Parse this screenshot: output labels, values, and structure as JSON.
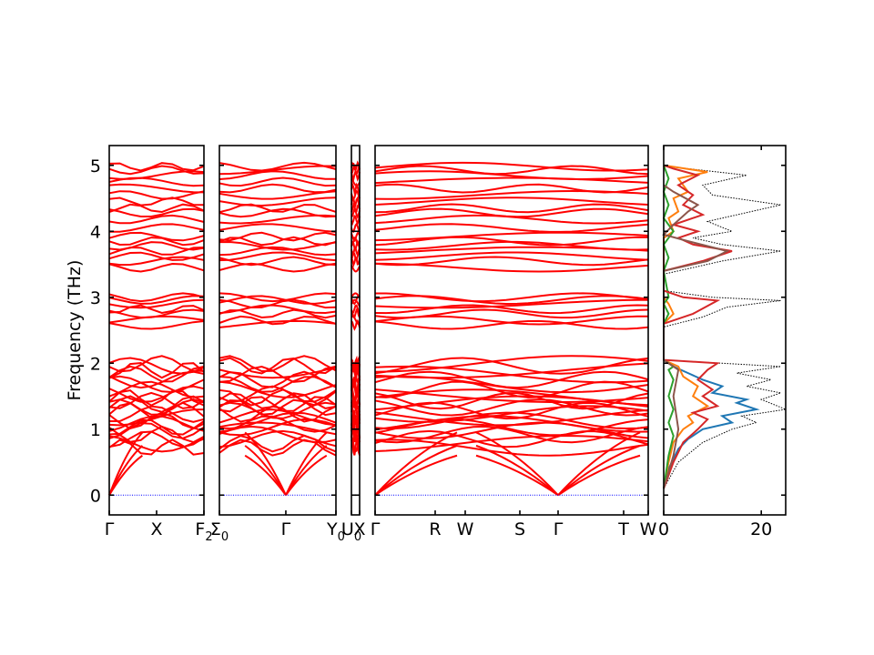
{
  "chart_data": {
    "type": "line",
    "ylabel": "Frequency (THz)",
    "ylim": [
      -0.3,
      5.3
    ],
    "yticks": [
      0,
      1,
      2,
      3,
      4,
      5
    ],
    "band_color": "#ff0000",
    "zero_line_color": "#0000ff",
    "panels": [
      {
        "name": "segment-1",
        "ticks": [
          {
            "label": "Γ",
            "sub": "",
            "x": 0
          },
          {
            "label": "X",
            "sub": "",
            "x": 0.5
          },
          {
            "label": "F",
            "sub": "2",
            "x": 1
          }
        ]
      },
      {
        "name": "segment-2",
        "ticks": [
          {
            "label": "Σ",
            "sub": "0",
            "x": 0
          },
          {
            "label": "Γ",
            "sub": "",
            "x": 0.57
          },
          {
            "label": "Y",
            "sub": "0",
            "x": 1
          }
        ]
      },
      {
        "name": "segment-3",
        "ticks": [
          {
            "label": "U",
            "sub": "0",
            "x": 0
          },
          {
            "label": "X",
            "sub": "",
            "x": 1
          }
        ]
      },
      {
        "name": "segment-4",
        "ticks": [
          {
            "label": "Γ",
            "sub": "",
            "x": 0
          },
          {
            "label": "R",
            "sub": "",
            "x": 0.22
          },
          {
            "label": "W",
            "sub": "",
            "x": 0.33
          },
          {
            "label": "S",
            "sub": "",
            "x": 0.53
          },
          {
            "label": "Γ",
            "sub": "",
            "x": 0.67
          },
          {
            "label": "T",
            "sub": "",
            "x": 0.91
          },
          {
            "label": "W",
            "sub": "",
            "x": 1
          }
        ]
      }
    ],
    "dos": {
      "xlim": [
        0,
        25
      ],
      "xticks": [
        0,
        20
      ],
      "total_color": "#000000",
      "series": [
        {
          "color": "#1f77b4",
          "points": [
            [
              0,
              0.1
            ],
            [
              1,
              0.4
            ],
            [
              3,
              0.7
            ],
            [
              5,
              0.85
            ],
            [
              8,
              1.0
            ],
            [
              14,
              1.1
            ],
            [
              12,
              1.2
            ],
            [
              19,
              1.3
            ],
            [
              15,
              1.4
            ],
            [
              17,
              1.45
            ],
            [
              10,
              1.55
            ],
            [
              12,
              1.65
            ],
            [
              8,
              1.75
            ],
            [
              5,
              1.85
            ],
            [
              2,
              1.95
            ],
            [
              0,
              2.05
            ]
          ]
        },
        {
          "color": "#ff7f0e",
          "points": [
            [
              0,
              0.1
            ],
            [
              1,
              0.5
            ],
            [
              2,
              0.8
            ],
            [
              4,
              1.0
            ],
            [
              6,
              1.1
            ],
            [
              5,
              1.2
            ],
            [
              9,
              1.35
            ],
            [
              6,
              1.5
            ],
            [
              7,
              1.65
            ],
            [
              4,
              1.8
            ],
            [
              3,
              1.95
            ],
            [
              0,
              2.05
            ],
            [
              0,
              2.6
            ],
            [
              2,
              2.75
            ],
            [
              1,
              2.9
            ],
            [
              0,
              3.0
            ],
            [
              0,
              3.9
            ],
            [
              2,
              4.0
            ],
            [
              1,
              4.2
            ],
            [
              3,
              4.3
            ],
            [
              2,
              4.5
            ],
            [
              5,
              4.6
            ],
            [
              3,
              4.8
            ],
            [
              9,
              4.9
            ],
            [
              0,
              5.0
            ]
          ]
        },
        {
          "color": "#2ca02c",
          "points": [
            [
              0,
              0.1
            ],
            [
              1,
              0.6
            ],
            [
              2,
              0.9
            ],
            [
              1,
              1.1
            ],
            [
              2,
              1.3
            ],
            [
              1,
              1.5
            ],
            [
              2,
              1.75
            ],
            [
              1,
              1.9
            ],
            [
              2,
              1.95
            ],
            [
              0,
              2.05
            ],
            [
              0,
              2.6
            ],
            [
              1,
              2.75
            ],
            [
              0,
              2.9
            ],
            [
              1,
              3.0
            ],
            [
              0,
              3.4
            ],
            [
              1,
              3.6
            ],
            [
              0,
              3.8
            ],
            [
              2,
              4.0
            ],
            [
              0,
              4.2
            ],
            [
              1,
              4.4
            ],
            [
              0,
              4.6
            ],
            [
              1,
              4.8
            ],
            [
              0,
              5.0
            ]
          ]
        },
        {
          "color": "#d62728",
          "points": [
            [
              0,
              0.1
            ],
            [
              2,
              0.5
            ],
            [
              4,
              0.8
            ],
            [
              7,
              1.0
            ],
            [
              9,
              1.15
            ],
            [
              6,
              1.25
            ],
            [
              11,
              1.35
            ],
            [
              8,
              1.5
            ],
            [
              10,
              1.6
            ],
            [
              7,
              1.75
            ],
            [
              9,
              1.9
            ],
            [
              11,
              2.0
            ],
            [
              0,
              2.05
            ],
            [
              0,
              2.6
            ],
            [
              6,
              2.75
            ],
            [
              11,
              2.95
            ],
            [
              4,
              3.0
            ],
            [
              0,
              3.1
            ],
            [
              0,
              3.4
            ],
            [
              8,
              3.55
            ],
            [
              14,
              3.7
            ],
            [
              6,
              3.8
            ],
            [
              3,
              3.9
            ],
            [
              7,
              4.0
            ],
            [
              2,
              4.1
            ],
            [
              8,
              4.25
            ],
            [
              4,
              4.4
            ],
            [
              6,
              4.55
            ],
            [
              3,
              4.7
            ],
            [
              7,
              4.85
            ],
            [
              2,
              4.95
            ],
            [
              0,
              5.0
            ]
          ]
        },
        {
          "color": "#8c564b",
          "points": [
            [
              0,
              0.1
            ],
            [
              2,
              0.6
            ],
            [
              3,
              1.0
            ],
            [
              2,
              1.5
            ],
            [
              3,
              1.9
            ],
            [
              0,
              2.05
            ],
            [
              0,
              3.4
            ],
            [
              9,
              3.55
            ],
            [
              13,
              3.7
            ],
            [
              5,
              3.85
            ],
            [
              0,
              3.95
            ],
            [
              2,
              4.1
            ],
            [
              5,
              4.3
            ],
            [
              7,
              4.4
            ],
            [
              2,
              4.6
            ],
            [
              0,
              4.7
            ]
          ]
        }
      ],
      "total": [
        [
          0,
          0.1
        ],
        [
          3,
          0.5
        ],
        [
          8,
          0.8
        ],
        [
          14,
          1.0
        ],
        [
          19,
          1.1
        ],
        [
          16,
          1.2
        ],
        [
          25,
          1.3
        ],
        [
          20,
          1.45
        ],
        [
          24,
          1.55
        ],
        [
          17,
          1.65
        ],
        [
          22,
          1.75
        ],
        [
          15,
          1.85
        ],
        [
          24,
          1.95
        ],
        [
          12,
          2.0
        ],
        [
          0,
          2.05
        ],
        [
          0,
          2.55
        ],
        [
          8,
          2.7
        ],
        [
          13,
          2.85
        ],
        [
          24,
          2.95
        ],
        [
          10,
          3.0
        ],
        [
          0,
          3.1
        ],
        [
          0,
          3.35
        ],
        [
          12,
          3.55
        ],
        [
          24,
          3.7
        ],
        [
          12,
          3.8
        ],
        [
          6,
          3.9
        ],
        [
          14,
          4.0
        ],
        [
          9,
          4.15
        ],
        [
          24,
          4.4
        ],
        [
          10,
          4.55
        ],
        [
          8,
          4.7
        ],
        [
          17,
          4.85
        ],
        [
          5,
          4.95
        ],
        [
          0,
          5.0
        ]
      ]
    }
  }
}
